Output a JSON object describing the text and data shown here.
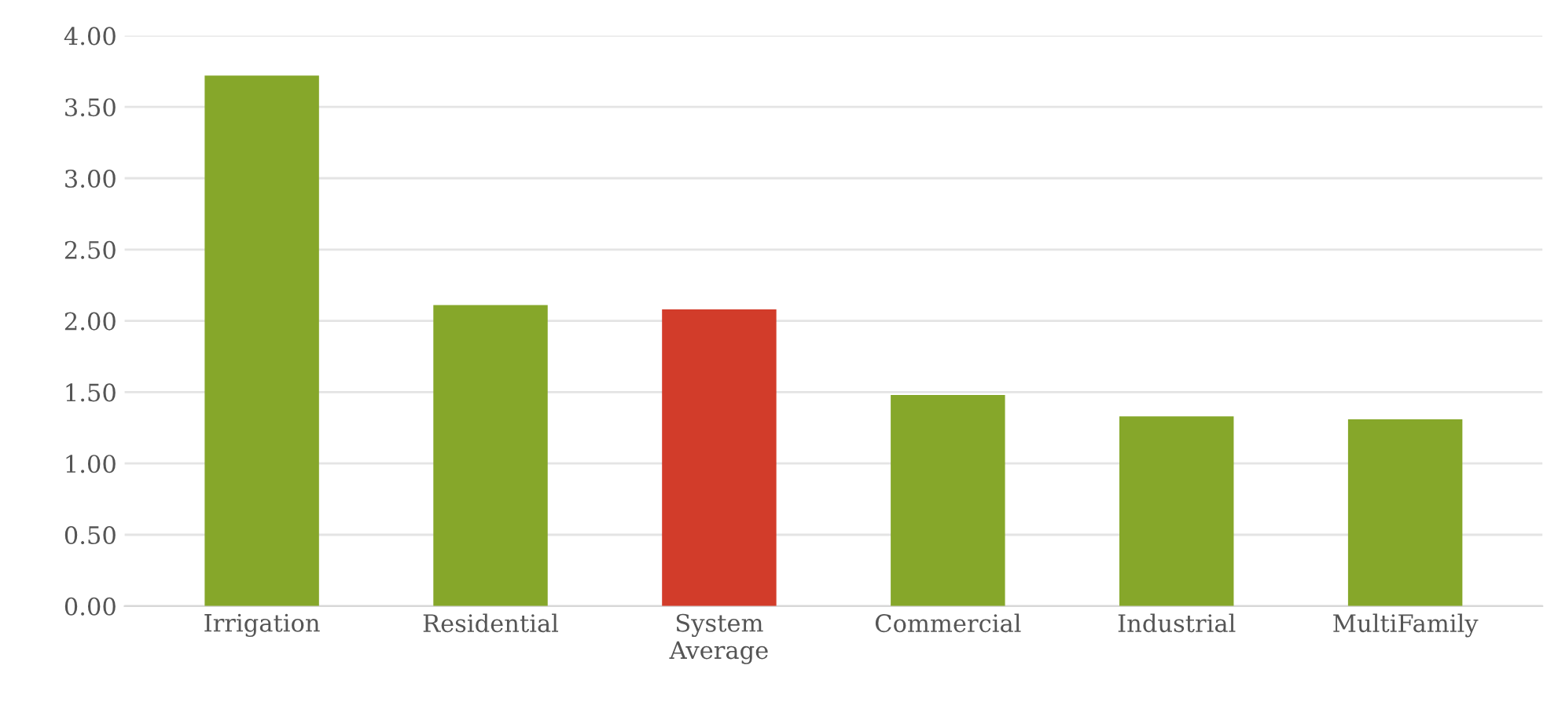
{
  "chart_data": {
    "type": "bar",
    "categories": [
      "Irrigation",
      "Residential",
      "System\nAverage",
      "Commercial",
      "Industrial",
      "MultiFamily"
    ],
    "values": [
      3.72,
      2.11,
      2.08,
      1.48,
      1.33,
      1.31
    ],
    "colors": [
      "#86a72a",
      "#86a72a",
      "#d23c2a",
      "#86a72a",
      "#86a72a",
      "#86a72a"
    ],
    "ylim": [
      0,
      4
    ],
    "yticks": [
      {
        "value": 0,
        "label": "0.00"
      },
      {
        "value": 0.5,
        "label": "0.50"
      },
      {
        "value": 1,
        "label": "1.00"
      },
      {
        "value": 1.5,
        "label": "1.50"
      },
      {
        "value": 2,
        "label": "2.00"
      },
      {
        "value": 2.5,
        "label": "2.50"
      },
      {
        "value": 3,
        "label": "3.00"
      },
      {
        "value": 3.5,
        "label": "3.50"
      },
      {
        "value": 4,
        "label": "4.00"
      }
    ],
    "grid": "y"
  }
}
